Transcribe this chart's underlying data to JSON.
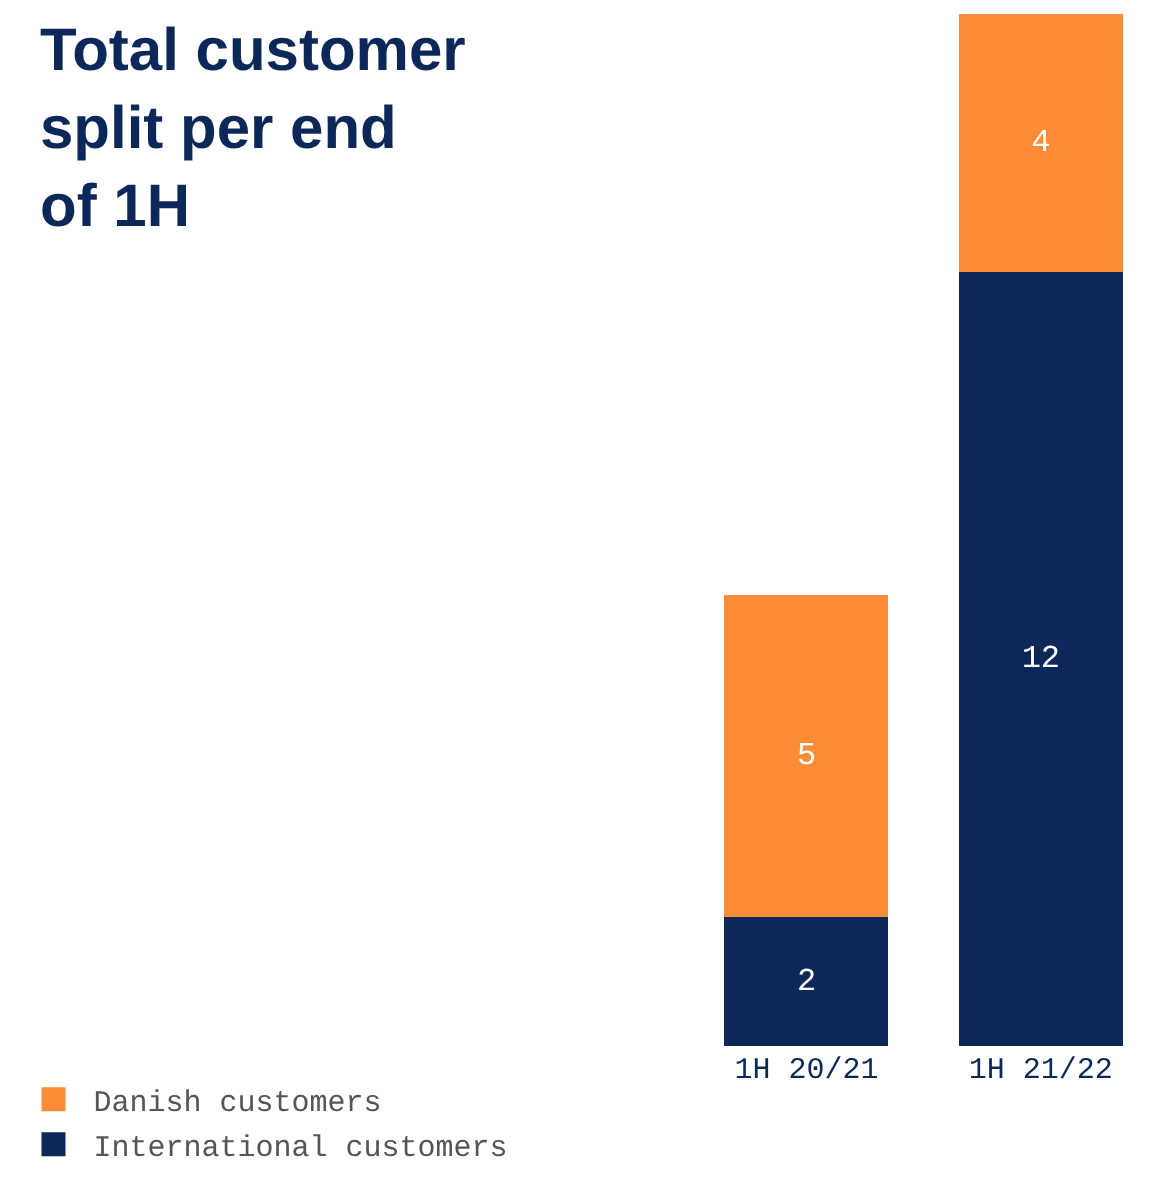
{
  "chart_data": {
    "type": "bar",
    "title": "Total customer split per end of 1H",
    "categories": [
      "1H 20/21",
      "1H 21/22"
    ],
    "stacked": true,
    "series": [
      {
        "name": "International customers",
        "color": "#0b2859",
        "values": [
          2,
          12
        ]
      },
      {
        "name": "Danish customers",
        "color": "#fd8c36",
        "values": [
          5,
          4
        ]
      }
    ],
    "data_labels": true,
    "legend": "bottom left",
    "tick_labels": "x"
  }
}
